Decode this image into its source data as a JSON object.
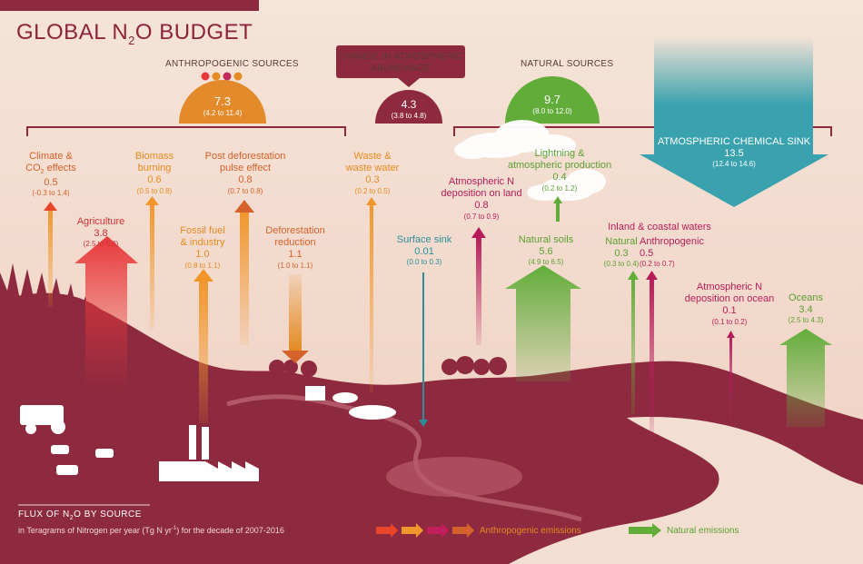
{
  "title": {
    "main": "GLOBAL N",
    "sub": "2",
    "end": "O BUDGET"
  },
  "headers": {
    "anthropogenic": "ANTHROPOGENIC SOURCES",
    "natural": "NATURAL SOURCES",
    "change": "CHANGE IN ATMOSPHERIC ABUNDANCE"
  },
  "totals": {
    "anthropogenic": {
      "value": "7.3",
      "range": "(4.2 to 11.4)"
    },
    "change": {
      "value": "4.3",
      "range": "(3.8 to 4.8)"
    },
    "natural": {
      "value": "9.7",
      "range": "(8.0 to 12.0)"
    },
    "sink": {
      "label": "ATMOSPHERIC CHEMICAL SINK",
      "value": "13.5",
      "range": "(12.4 to 14.6)"
    }
  },
  "fluxes": {
    "climate": {
      "label1": "Climate &",
      "label2": "CO",
      "label2sub": "2",
      "label2end": " effects",
      "value": "0.5",
      "range": "(-0.3 to 1.4)"
    },
    "agriculture": {
      "label": "Agriculture",
      "value": "3.8",
      "range": "(2.5 to 5.8)"
    },
    "biomass": {
      "label1": "Biomass",
      "label2": "burning",
      "value": "0.6",
      "range": "(0.5 to 0.8)"
    },
    "fossil": {
      "label1": "Fossil fuel",
      "label2": "& industry",
      "value": "1.0",
      "range": "(0.8 to 1.1)"
    },
    "postdef": {
      "label1": "Post deforestation",
      "label2": "pulse effect",
      "value": "0.8",
      "range": "(0.7 to 0.8)"
    },
    "defred": {
      "label1": "Deforestation",
      "label2": "reduction",
      "value": "1.1",
      "range": "(1.0 to 1.1)"
    },
    "waste": {
      "label1": "Waste &",
      "label2": "waste water",
      "value": "0.3",
      "range": "(0.2 to 0.5)"
    },
    "surface_sink": {
      "label": "Surface sink",
      "value": "0.01",
      "range": "(0.0 to 0.3)"
    },
    "atm_n_land": {
      "label1": "Atmospheric N",
      "label2": "deposition on land",
      "value": "0.8",
      "range": "(0.7 to 0.9)"
    },
    "lightning": {
      "label1": "Lightning &",
      "label2": "atmospheric production",
      "value": "0.4",
      "range": "(0.2 to 1.2)"
    },
    "natural_soils": {
      "label": "Natural soils",
      "value": "5.6",
      "range": "(4.9 to 6.5)"
    },
    "inland_header": "Inland & coastal waters",
    "inland_natural": {
      "label": "Natural",
      "value": "0.3",
      "range": "(0.3 to 0.4)"
    },
    "inland_anthro": {
      "label": "Anthropogenic",
      "value": "0.5",
      "range": "(0.2 to 0.7)"
    },
    "atm_n_ocean": {
      "label1": "Atmospheric N",
      "label2": "deposition on ocean",
      "value": "0.1",
      "range": "(0.1 to 0.2)"
    },
    "oceans": {
      "label": "Oceans",
      "value": "3.4",
      "range": "(2.5 to 4.3)"
    }
  },
  "legend": {
    "title_a": "FLUX OF N",
    "title_sub": "2",
    "title_b": "O BY SOURCE",
    "subtitle_a": "in Teragrams of Nitrogen per year (Tg N yr",
    "subtitle_sup": "-1",
    "subtitle_b": ") for the decade of 2007-2016",
    "anthropogenic": "Anthropogenic emissions",
    "natural": "Natural emissions"
  },
  "colors": {
    "background": "#f3dfd2",
    "land": "#8e2a3f",
    "anthropogenic_orange": "#e38a2b",
    "natural_green": "#62ad3a",
    "sink_teal": "#3aa2ae",
    "magenta": "#b51d5a",
    "title_maroon": "#8c2339"
  }
}
